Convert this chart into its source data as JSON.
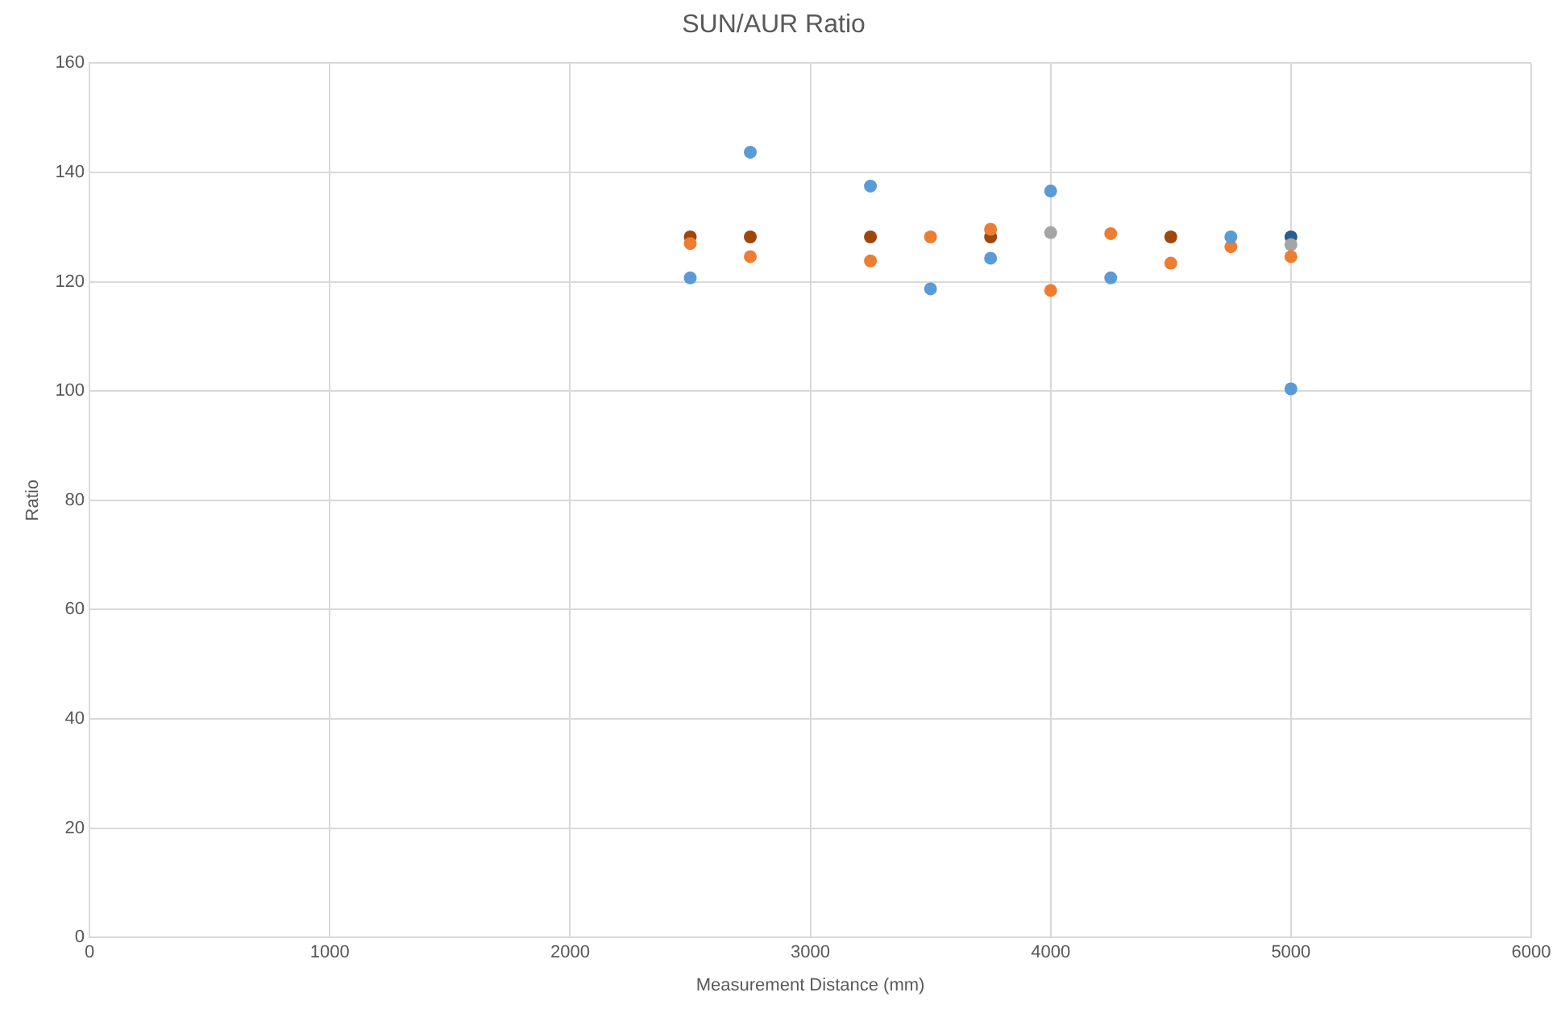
{
  "chart_data": {
    "type": "scatter",
    "title": "SUN/AUR Ratio",
    "xlabel": "Measurement Distance (mm)",
    "ylabel": "Ratio",
    "x": [
      2500,
      2750,
      3250,
      3500,
      3750,
      4000,
      4250,
      4500,
      4750,
      5000
    ],
    "series": [
      {
        "color": "#5b9bd5",
        "values": [
          120.7,
          143.7,
          137.5,
          118.7,
          124.3,
          136.6,
          120.7,
          null,
          128.2,
          100.4
        ]
      },
      {
        "color": "#ed7d31",
        "values": [
          127.0,
          124.6,
          123.8,
          128.2,
          129.6,
          118.4,
          128.8,
          123.4,
          126.4,
          124.6
        ]
      },
      {
        "color": "#a5a5a5",
        "values": [
          null,
          null,
          null,
          null,
          null,
          129.0,
          null,
          null,
          null,
          126.8
        ]
      },
      {
        "color": "#9e480e",
        "values": [
          128.2,
          128.2,
          128.2,
          null,
          128.2,
          null,
          null,
          128.2,
          null,
          null
        ]
      },
      {
        "color": "#255e91",
        "values": [
          null,
          null,
          null,
          null,
          null,
          null,
          null,
          null,
          null,
          128.2
        ]
      }
    ],
    "xlim": [
      0,
      6000
    ],
    "xticks": [
      0,
      1000,
      2000,
      3000,
      4000,
      5000,
      6000
    ],
    "ylim": [
      0,
      160
    ],
    "yticks": [
      0,
      20,
      40,
      60,
      80,
      100,
      120,
      140,
      160
    ],
    "grid": true,
    "legend": false,
    "marker": "circle"
  }
}
